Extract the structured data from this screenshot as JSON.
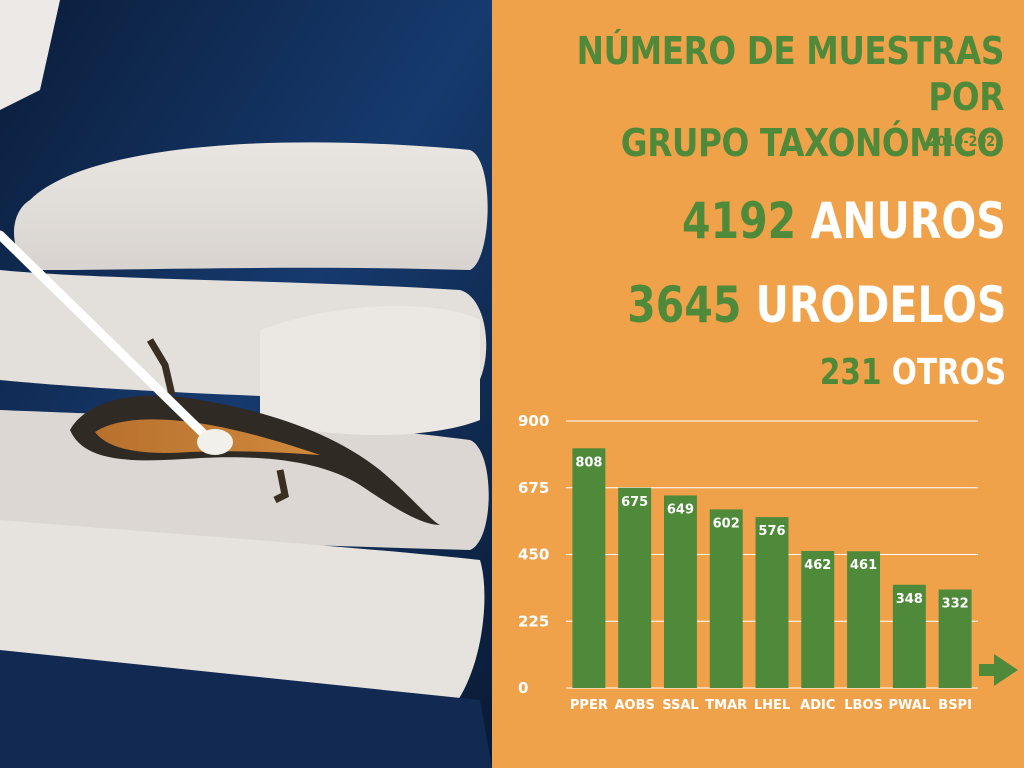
{
  "header": {
    "title_line1": "NÚMERO DE MUESTRAS POR",
    "title_line2": "GRUPO TAXONÓMICO",
    "years": "2019-2022"
  },
  "stats": [
    {
      "number": "4192",
      "label": "ANUROS"
    },
    {
      "number": "3645",
      "label": "URODELOS"
    },
    {
      "number": "231",
      "label": "OTROS"
    }
  ],
  "colors": {
    "background": "#f0a24a",
    "bar": "#4e8a3a",
    "accent_green": "#4e8a3a",
    "text_white": "#ffffff"
  },
  "icons": {
    "arrow": "arrow-right-icon"
  },
  "chart_data": {
    "type": "bar",
    "categories": [
      "PPER",
      "AOBS",
      "SSAL",
      "TMAR",
      "LHEL",
      "ADIC",
      "LBOS",
      "PWAL",
      "BSPI"
    ],
    "values": [
      808,
      675,
      649,
      602,
      576,
      462,
      461,
      348,
      332
    ],
    "yticks": [
      0,
      225,
      450,
      675,
      900
    ],
    "ylim": [
      0,
      900
    ],
    "grid": true,
    "title": "",
    "xlabel": "",
    "ylabel": ""
  }
}
